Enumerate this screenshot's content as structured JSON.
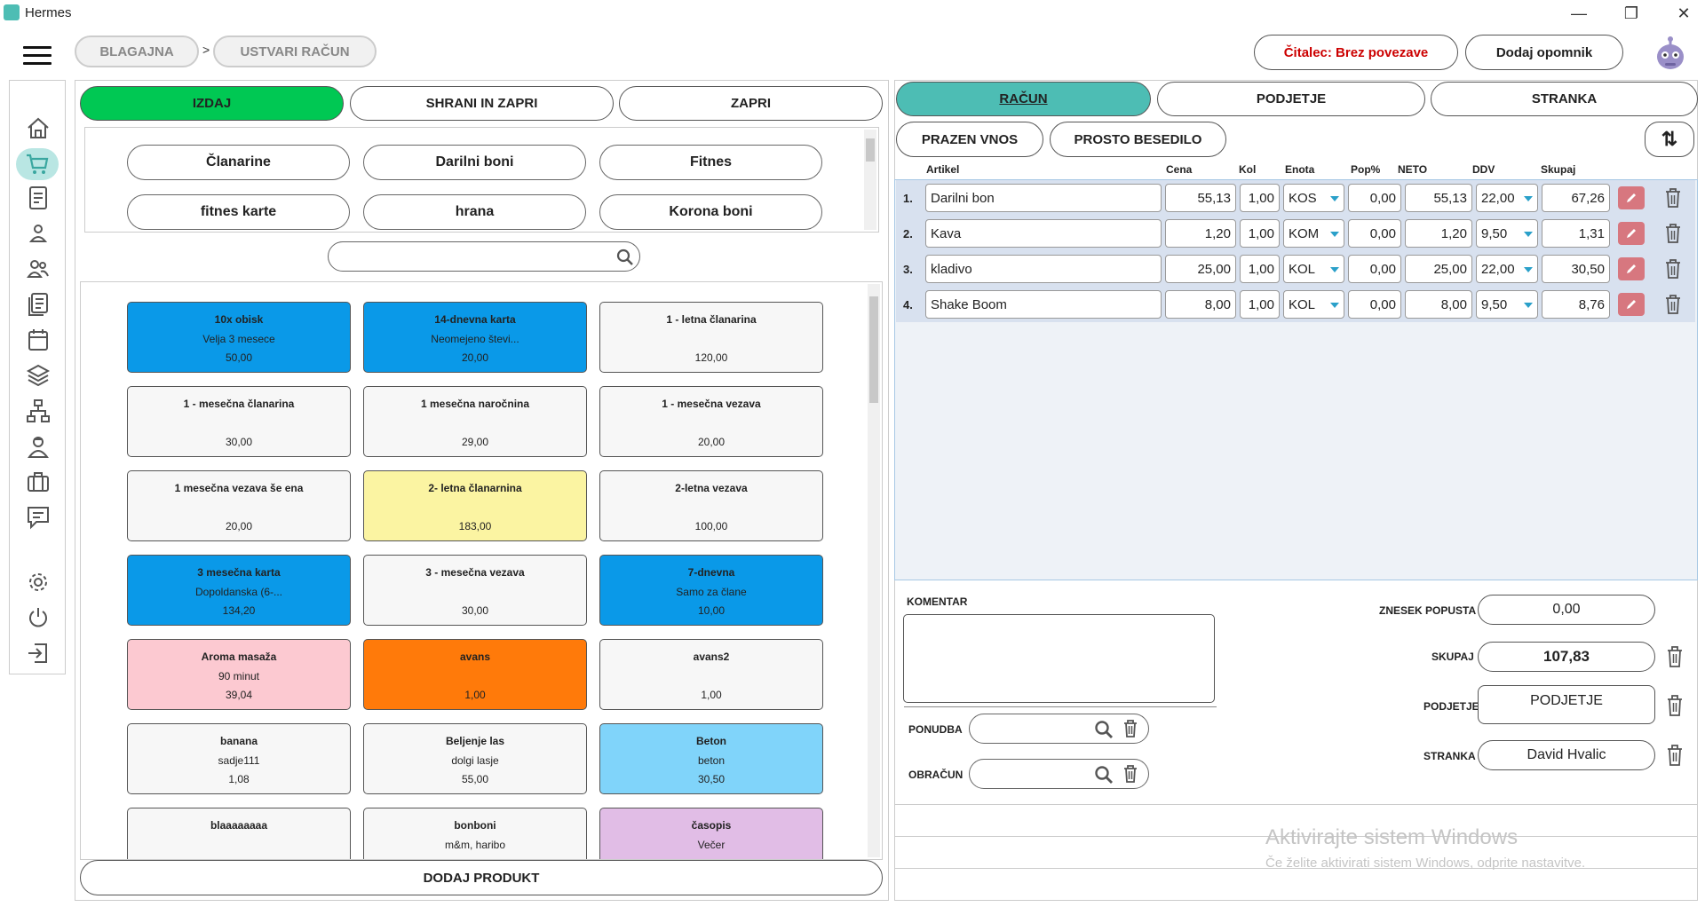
{
  "window": {
    "title": "Hermes"
  },
  "breadcrumb": {
    "items": [
      "BLAGAJNA",
      "USTVARI RAČUN"
    ],
    "separator": ">"
  },
  "header": {
    "reader_status": "Čitalec: Brez povezave",
    "reader_status_color": "#cc0000",
    "add_reminder": "Dodaj opomnik"
  },
  "actions": {
    "issue": "IZDAJ",
    "save_close": "SHRANI IN ZAPRI",
    "close": "ZAPRI",
    "issue_color": "#00c853"
  },
  "categories": [
    "Članarine",
    "Darilni boni",
    "Fitnes",
    "fitnes karte",
    "hrana",
    "Korona boni"
  ],
  "products": [
    {
      "name": "10x obisk",
      "desc": "Velja 3 mesece",
      "price": "50,00",
      "color": "#0a99e8"
    },
    {
      "name": "14-dnevna karta",
      "desc": "Neomejeno števi...",
      "price": "20,00",
      "color": "#0a99e8"
    },
    {
      "name": "1 - letna članarina",
      "desc": "",
      "price": "120,00",
      "color": "#f7f7f7"
    },
    {
      "name": "1 - mesečna članarina",
      "desc": "",
      "price": "30,00",
      "color": "#f7f7f7"
    },
    {
      "name": "1 mesečna naročnina",
      "desc": "",
      "price": "29,00",
      "color": "#f7f7f7"
    },
    {
      "name": "1 - mesečna vezava",
      "desc": "",
      "price": "20,00",
      "color": "#f7f7f7"
    },
    {
      "name": "1 mesečna vezava še ena",
      "desc": "",
      "price": "20,00",
      "color": "#f7f7f7"
    },
    {
      "name": "2- letna članarnina",
      "desc": "",
      "price": "183,00",
      "color": "#fbf4a2"
    },
    {
      "name": "2-letna vezava",
      "desc": "",
      "price": "100,00",
      "color": "#f7f7f7"
    },
    {
      "name": "3 mesečna karta",
      "desc": "Dopoldanska (6-...",
      "price": "134,20",
      "color": "#0a99e8"
    },
    {
      "name": "3 - mesečna vezava",
      "desc": "",
      "price": "30,00",
      "color": "#f7f7f7"
    },
    {
      "name": "7-dnevna",
      "desc": "Samo za člane",
      "price": "10,00",
      "color": "#0a99e8"
    },
    {
      "name": "Aroma masaža",
      "desc": "90 minut",
      "price": "39,04",
      "color": "#fcc9d1"
    },
    {
      "name": "avans",
      "desc": "",
      "price": "1,00",
      "color": "#ff7a0a"
    },
    {
      "name": "avans2",
      "desc": "",
      "price": "1,00",
      "color": "#f7f7f7"
    },
    {
      "name": "banana",
      "desc": "sadje111",
      "price": "1,08",
      "color": "#f7f7f7"
    },
    {
      "name": "Beljenje las",
      "desc": "dolgi lasje",
      "price": "55,00",
      "color": "#f7f7f7"
    },
    {
      "name": "Beton",
      "desc": "beton",
      "price": "30,50",
      "color": "#80d4fa"
    },
    {
      "name": "blaaaaaaaa",
      "desc": "",
      "price": "",
      "color": "#f7f7f7"
    },
    {
      "name": "bonboni",
      "desc": "m&m, haribo",
      "price": "",
      "color": "#f7f7f7"
    },
    {
      "name": "časopis",
      "desc": "Večer",
      "price": "",
      "color": "#e1bde6"
    }
  ],
  "add_product": "DODAJ PRODUKT",
  "tabs": {
    "invoice": "RAČUN",
    "split": "PODJETJE",
    "customer": "STRANKA",
    "active_color": "#4dbdb4"
  },
  "sub_actions": {
    "empty_entry": "PRAZEN VNOS",
    "free_text": "PROSTO BESEDILO"
  },
  "columns": {
    "article": "Artikel",
    "price": "Cena",
    "qty": "Kol",
    "unit": "Enota",
    "discount": "Pop%",
    "net": "NETO",
    "vat": "DDV",
    "total": "Skupaj"
  },
  "lines": [
    {
      "no": "1.",
      "article": "Darilni bon",
      "price": "55,13",
      "qty": "1,00",
      "unit": "KOS",
      "discount": "0,00",
      "net": "55,13",
      "vat": "22,00",
      "total": "67,26"
    },
    {
      "no": "2.",
      "article": "Kava",
      "price": "1,20",
      "qty": "1,00",
      "unit": "KOM",
      "discount": "0,00",
      "net": "1,20",
      "vat": "9,50",
      "total": "1,31"
    },
    {
      "no": "3.",
      "article": "kladivo",
      "price": "25,00",
      "qty": "1,00",
      "unit": "KOL",
      "discount": "0,00",
      "net": "25,00",
      "vat": "22,00",
      "total": "30,50"
    },
    {
      "no": "4.",
      "article": "Shake Boom",
      "price": "8,00",
      "qty": "1,00",
      "unit": "KOL",
      "discount": "0,00",
      "net": "8,00",
      "vat": "9,50",
      "total": "8,76"
    }
  ],
  "summary": {
    "comment_label": "KOMENTAR",
    "offer_label": "PONUDBA",
    "settlement_label": "OBRAČUN",
    "discount_label": "ZNESEK POPUSTA",
    "discount_value": "0,00",
    "total_label": "SKUPAJ",
    "total_value": "107,83",
    "company_label": "PODJETJE",
    "company_value": "PODJETJE",
    "customer_label": "STRANKA",
    "customer_value": "David Hvalic"
  },
  "watermark": {
    "line1": "Aktivirajte sistem Windows",
    "line2": "Če želite aktivirati sistem Windows, odprite nastavitve."
  }
}
